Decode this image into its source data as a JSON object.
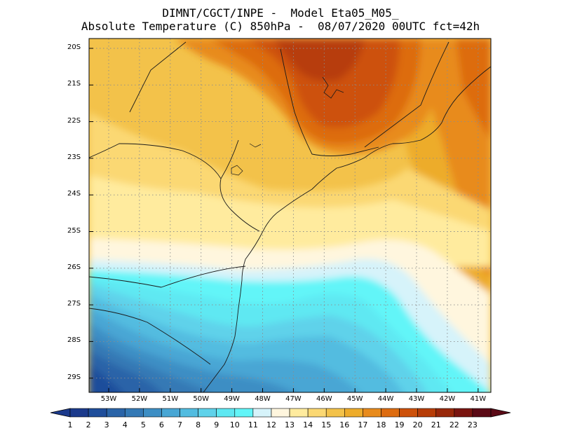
{
  "title": {
    "line1": "DIMNT/CGCT/INPE -  Model Eta05_M05_",
    "line2": "Absolute Temperature (C) 850hPa -  08/07/2020 00UTC fct=42h"
  },
  "map": {
    "lat_labels": [
      "20S",
      "21S",
      "22S",
      "23S",
      "24S",
      "25S",
      "26S",
      "27S",
      "28S",
      "29S"
    ],
    "lon_labels": [
      "53W",
      "52W",
      "51W",
      "50W",
      "49W",
      "48W",
      "47W",
      "46W",
      "45W",
      "44W",
      "43W",
      "42W",
      "41W"
    ]
  },
  "colorbar": {
    "labels": [
      "1",
      "2",
      "3",
      "4",
      "5",
      "6",
      "7",
      "8",
      "9",
      "10",
      "11",
      "12",
      "13",
      "14",
      "15",
      "16",
      "17",
      "18",
      "19",
      "20",
      "21",
      "22",
      "23"
    ],
    "colors": [
      "#1b3a8c",
      "#1f4e9b",
      "#2a64a8",
      "#3479b5",
      "#3d8ec4",
      "#48a6d4",
      "#52bce0",
      "#5fd2ea",
      "#5ee8f2",
      "#62f5f8",
      "#d6f3fa",
      "#fff6de",
      "#ffeb9e",
      "#fbd873",
      "#f3c24a",
      "#edac2b",
      "#e88b1c",
      "#dd6c10",
      "#cd510a",
      "#b73d07",
      "#98280a",
      "#7a1510",
      "#5b0a16"
    ]
  }
}
